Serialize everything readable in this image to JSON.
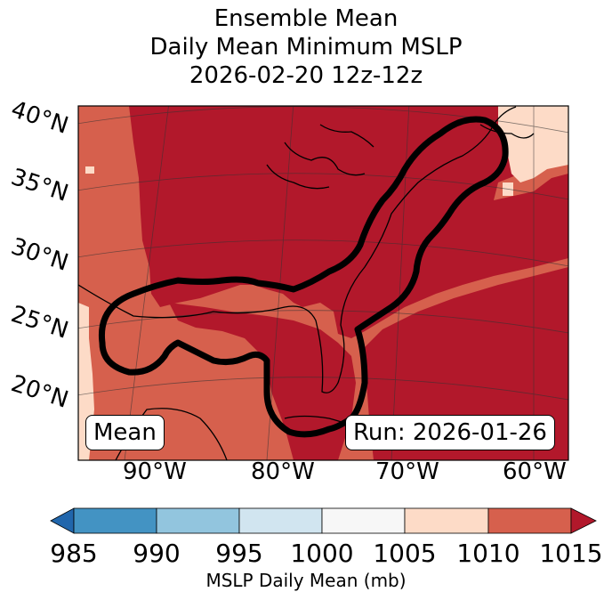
{
  "title": {
    "line1": "Ensemble Mean",
    "line2": "Daily Mean Minimum MSLP",
    "line3": "2026-02-20 12z-12z"
  },
  "map": {
    "lat_labels": [
      "40°N",
      "35°N",
      "30°N",
      "25°N",
      "20°N"
    ],
    "lon_labels": [
      "90°W",
      "80°W",
      "70°W",
      "60°W"
    ],
    "left_box": "Mean",
    "right_box": "Run: 2026-01-26",
    "colors": {
      "dark_red": "#b2182b",
      "mid_red": "#d6604d",
      "light_peach": "#fddbc7",
      "contour": "#000000"
    }
  },
  "colorbar": {
    "ticks": [
      "985",
      "990",
      "995",
      "1000",
      "1005",
      "1010",
      "1015"
    ],
    "label": "MSLP Daily Mean (mb)",
    "colors": [
      "#2166ac",
      "#4393c3",
      "#92c5de",
      "#d1e5f0",
      "#f7f7f7",
      "#fddbc7",
      "#d6604d",
      "#b2182b"
    ]
  }
}
